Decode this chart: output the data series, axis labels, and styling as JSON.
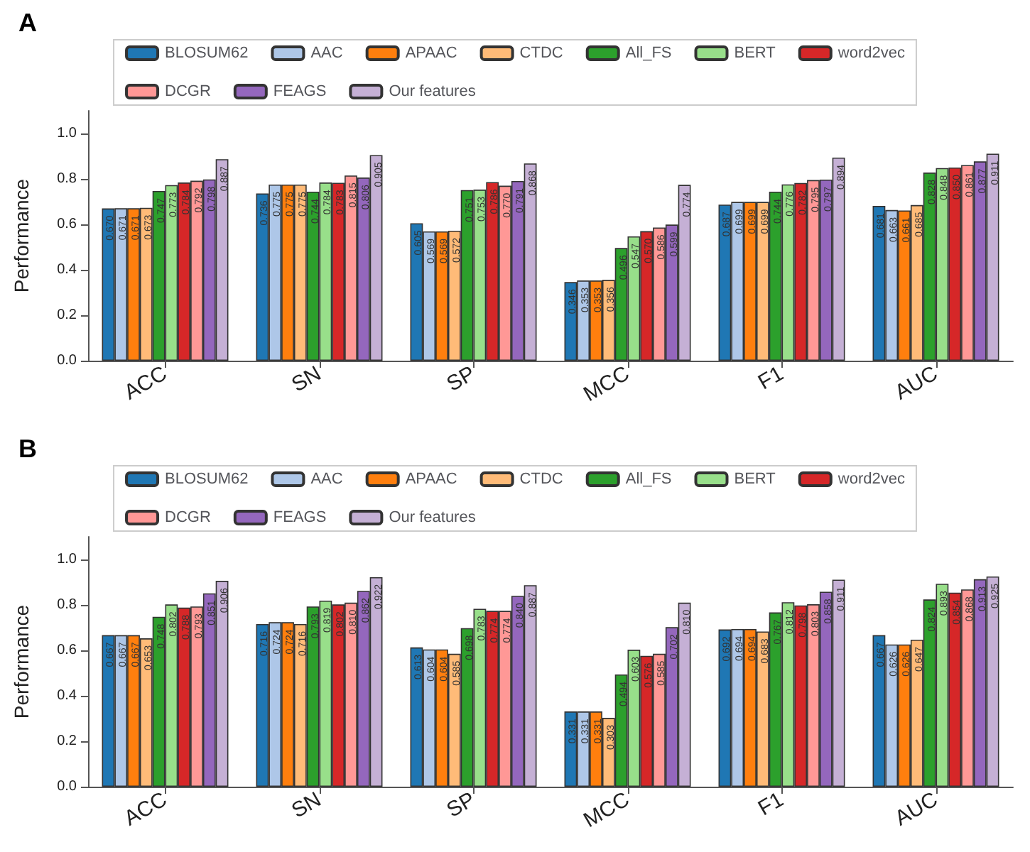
{
  "chart_data": [
    {
      "type": "bar",
      "title": "A",
      "ylabel": "Performance",
      "categories": [
        "ACC",
        "SN",
        "SP",
        "MCC",
        "F1",
        "AUC"
      ],
      "series": [
        {
          "name": "BLOSUM62",
          "color": "#1f77b4",
          "values": [
            0.67,
            0.736,
            0.605,
            0.346,
            0.687,
            0.681
          ],
          "value_labels": [
            "0.670",
            "0.736",
            "0.605",
            "0.346",
            "0.687",
            "0.681"
          ]
        },
        {
          "name": "AAC",
          "color": "#aec7e8",
          "values": [
            0.671,
            0.775,
            0.569,
            0.353,
            0.699,
            0.663
          ],
          "value_labels": [
            "0.671",
            "0.775",
            "0.569",
            "0.353",
            "0.699",
            "0.663"
          ]
        },
        {
          "name": "APAAC",
          "color": "#ff7f0e",
          "values": [
            0.671,
            0.775,
            0.569,
            0.353,
            0.699,
            0.661
          ],
          "value_labels": [
            "0.671",
            "0.775",
            "0.569",
            "0.353",
            "0.699",
            "0.661"
          ]
        },
        {
          "name": "CTDC",
          "color": "#ffbb78",
          "values": [
            0.673,
            0.775,
            0.572,
            0.356,
            0.699,
            0.685
          ],
          "value_labels": [
            "0.673",
            "0.775",
            "0.572",
            "0.356",
            "0.699",
            "0.685"
          ]
        },
        {
          "name": "All_FS",
          "color": "#2ca02c",
          "values": [
            0.747,
            0.744,
            0.751,
            0.496,
            0.744,
            0.828
          ],
          "value_labels": [
            "0.747",
            "0.744",
            "0.751",
            "0.496",
            "0.744",
            "0.828"
          ]
        },
        {
          "name": "BERT",
          "color": "#98df8a",
          "values": [
            0.773,
            0.784,
            0.753,
            0.547,
            0.776,
            0.848
          ],
          "value_labels": [
            "0.773",
            "0.784",
            "0.753",
            "0.547",
            "0.776",
            "0.848"
          ]
        },
        {
          "name": "word2vec",
          "color": "#d62728",
          "values": [
            0.784,
            0.783,
            0.786,
            0.57,
            0.782,
            0.85
          ],
          "value_labels": [
            "0.784",
            "0.783",
            "0.786",
            "0.570",
            "0.782",
            "0.850"
          ]
        },
        {
          "name": "DCGR",
          "color": "#ff9896",
          "values": [
            0.792,
            0.815,
            0.77,
            0.586,
            0.795,
            0.861
          ],
          "value_labels": [
            "0.792",
            "0.815",
            "0.770",
            "0.586",
            "0.795",
            "0.861"
          ]
        },
        {
          "name": "FEAGS",
          "color": "#9467bd",
          "values": [
            0.798,
            0.806,
            0.791,
            0.599,
            0.797,
            0.877
          ],
          "value_labels": [
            "0.798",
            "0.806",
            "0.791",
            "0.599",
            "0.797",
            "0.877"
          ]
        },
        {
          "name": "Our features",
          "color": "#c5b0d5",
          "values": [
            0.887,
            0.905,
            0.868,
            0.774,
            0.894,
            0.911
          ],
          "value_labels": [
            "0.887",
            "0.905",
            "0.868",
            "0.774",
            "0.894",
            "0.911"
          ]
        }
      ],
      "ylim": [
        0,
        1.1
      ],
      "yticks": [
        {
          "value": 0,
          "label": "0.0"
        },
        {
          "value": 0.2,
          "label": "0.2"
        },
        {
          "value": 0.4,
          "label": "0.4"
        },
        {
          "value": 0.6,
          "label": "0.6"
        },
        {
          "value": 0.8,
          "label": "0.8"
        },
        {
          "value": 1,
          "label": "1.0"
        }
      ],
      "legend": "top",
      "grid": false
    },
    {
      "type": "bar",
      "title": "B",
      "ylabel": "Performance",
      "categories": [
        "ACC",
        "SN",
        "SP",
        "MCC",
        "F1",
        "AUC"
      ],
      "series": [
        {
          "name": "BLOSUM62",
          "color": "#1f77b4",
          "values": [
            0.667,
            0.716,
            0.613,
            0.331,
            0.692,
            0.667
          ],
          "value_labels": [
            "0.667",
            "0.716",
            "0.613",
            "0.331",
            "0.692",
            "0.667"
          ]
        },
        {
          "name": "AAC",
          "color": "#aec7e8",
          "values": [
            0.667,
            0.724,
            0.604,
            0.331,
            0.694,
            0.626
          ],
          "value_labels": [
            "0.667",
            "0.724",
            "0.604",
            "0.331",
            "0.694",
            "0.626"
          ]
        },
        {
          "name": "APAAC",
          "color": "#ff7f0e",
          "values": [
            0.667,
            0.724,
            0.604,
            0.331,
            0.694,
            0.626
          ],
          "value_labels": [
            "0.667",
            "0.724",
            "0.604",
            "0.331",
            "0.694",
            "0.626"
          ]
        },
        {
          "name": "CTDC",
          "color": "#ffbb78",
          "values": [
            0.653,
            0.716,
            0.585,
            0.303,
            0.683,
            0.647
          ],
          "value_labels": [
            "0.653",
            "0.716",
            "0.585",
            "0.303",
            "0.683",
            "0.647"
          ]
        },
        {
          "name": "All_FS",
          "color": "#2ca02c",
          "values": [
            0.748,
            0.793,
            0.698,
            0.494,
            0.767,
            0.824
          ],
          "value_labels": [
            "0.748",
            "0.793",
            "0.698",
            "0.494",
            "0.767",
            "0.824"
          ]
        },
        {
          "name": "BERT",
          "color": "#98df8a",
          "values": [
            0.802,
            0.819,
            0.783,
            0.603,
            0.812,
            0.893
          ],
          "value_labels": [
            "0.802",
            "0.819",
            "0.783",
            "0.603",
            "0.812",
            "0.893"
          ]
        },
        {
          "name": "word2vec",
          "color": "#d62728",
          "values": [
            0.788,
            0.802,
            0.774,
            0.576,
            0.798,
            0.854
          ],
          "value_labels": [
            "0.788",
            "0.802",
            "0.774",
            "0.576",
            "0.798",
            "0.854"
          ]
        },
        {
          "name": "DCGR",
          "color": "#ff9896",
          "values": [
            0.793,
            0.81,
            0.774,
            0.585,
            0.803,
            0.868
          ],
          "value_labels": [
            "0.793",
            "0.810",
            "0.774",
            "0.585",
            "0.803",
            "0.868"
          ]
        },
        {
          "name": "FEAGS",
          "color": "#9467bd",
          "values": [
            0.851,
            0.862,
            0.84,
            0.702,
            0.858,
            0.913
          ],
          "value_labels": [
            "0.851",
            "0.862",
            "0.840",
            "0.702",
            "0.858",
            "0.913"
          ]
        },
        {
          "name": "Our features",
          "color": "#c5b0d5",
          "values": [
            0.906,
            0.922,
            0.887,
            0.81,
            0.911,
            0.925
          ],
          "value_labels": [
            "0.906",
            "0.922",
            "0.887",
            "0.810",
            "0.911",
            "0.925"
          ]
        }
      ],
      "ylim": [
        0,
        1.1
      ],
      "yticks": [
        {
          "value": 0,
          "label": "0.0"
        },
        {
          "value": 0.2,
          "label": "0.2"
        },
        {
          "value": 0.4,
          "label": "0.4"
        },
        {
          "value": 0.6,
          "label": "0.6"
        },
        {
          "value": 0.8,
          "label": "0.8"
        },
        {
          "value": 1,
          "label": "1.0"
        }
      ],
      "legend": "top",
      "grid": false
    }
  ]
}
